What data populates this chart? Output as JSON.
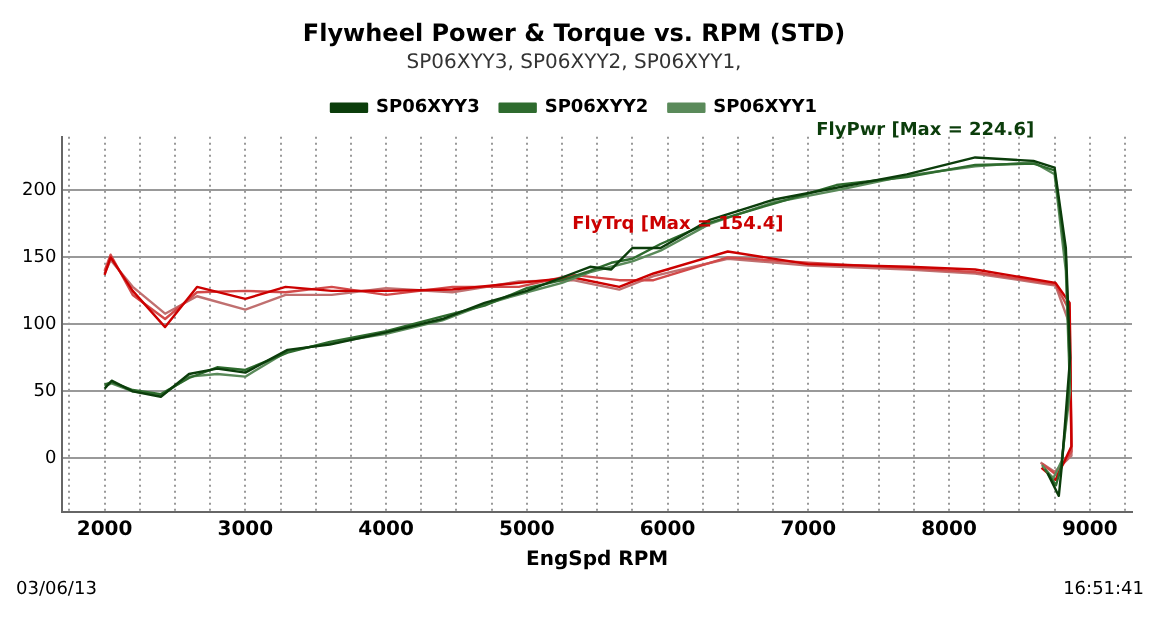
{
  "chart_data": {
    "type": "line",
    "title": "Flywheel Power & Torque vs. RPM (STD)",
    "subtitle": "SP06XYY3, SP06XYY2, SP06XYY1,",
    "xlabel": "EngSpd RPM",
    "xlim": [
      1700,
      9300
    ],
    "xticks": [
      {
        "value": 1750,
        "label": null
      },
      2000,
      {
        "value": 2250,
        "label": null
      },
      {
        "value": 2500,
        "label": null
      },
      {
        "value": 2750,
        "label": null
      },
      3000,
      {
        "value": 3250,
        "label": null
      },
      {
        "value": 3500,
        "label": null
      },
      {
        "value": 3750,
        "label": null
      },
      4000,
      {
        "value": 4250,
        "label": null
      },
      {
        "value": 4500,
        "label": null
      },
      {
        "value": 4750,
        "label": null
      },
      5000,
      {
        "value": 5250,
        "label": null
      },
      {
        "value": 5500,
        "label": null
      },
      {
        "value": 5750,
        "label": null
      },
      6000,
      {
        "value": 6250,
        "label": null
      },
      {
        "value": 6500,
        "label": null
      },
      {
        "value": 6750,
        "label": null
      },
      7000,
      {
        "value": 7250,
        "label": null
      },
      {
        "value": 7500,
        "label": null
      },
      {
        "value": 7750,
        "label": null
      },
      8000,
      {
        "value": 8250,
        "label": null
      },
      {
        "value": 8500,
        "label": null
      },
      {
        "value": 8750,
        "label": null
      },
      9000,
      {
        "value": 9250,
        "label": null
      }
    ],
    "ylim": [
      -40,
      240
    ],
    "yticks": [
      0,
      50,
      100,
      150,
      200
    ],
    "grid": true,
    "legend": "top",
    "marker": "none",
    "line_style": "solid",
    "series": [
      {
        "name": "SP06XYY3",
        "color": "#0b3d0b",
        "x": [
          2000,
          2050,
          2200,
          2400,
          2600,
          2800,
          3000,
          3300,
          3600,
          4000,
          4400,
          4700,
          5000,
          5250,
          5450,
          5600,
          5750,
          5950,
          6300,
          6750,
          7200,
          7700,
          8186,
          8600,
          8750,
          8830,
          8860,
          8800,
          8780,
          8700
        ],
        "values": [
          52,
          58,
          50,
          46,
          63,
          67,
          64,
          81,
          85,
          94,
          104,
          116,
          125,
          135,
          143,
          141,
          157,
          157,
          178,
          193,
          202,
          212,
          224.6,
          222,
          217,
          157,
          75,
          -7,
          -28,
          -11
        ]
      },
      {
        "name": "SP06XYY2",
        "color": "#2e6b2e",
        "x": [
          2000,
          2050,
          2200,
          2400,
          2600,
          2800,
          3000,
          3300,
          3600,
          4000,
          4400,
          4700,
          5000,
          5250,
          5450,
          5600,
          5750,
          5950,
          6300,
          6750,
          7200,
          7700,
          8186,
          8600,
          8750,
          8830,
          8860,
          8800,
          8760,
          8680
        ],
        "values": [
          55,
          57,
          51,
          48,
          60,
          68,
          66,
          79,
          87,
          95,
          106,
          114,
          127,
          133,
          140,
          146,
          149,
          160,
          176,
          190,
          204,
          210,
          219,
          220,
          215,
          150,
          60,
          -5,
          -20,
          -8
        ]
      },
      {
        "name": "SP06XYY1",
        "color": "#5a8a5a",
        "x": [
          2000,
          2050,
          2200,
          2400,
          2600,
          2800,
          3000,
          3300,
          3600,
          4000,
          4400,
          4700,
          5000,
          5250,
          5450,
          5600,
          5750,
          5950,
          6300,
          6750,
          7200,
          7700,
          8186,
          8600,
          8750,
          8830,
          8860,
          8800,
          8740,
          8660
        ],
        "values": [
          54,
          56,
          50,
          47,
          61,
          63,
          61,
          80,
          86,
          93,
          103,
          115,
          124,
          131,
          139,
          143,
          147,
          155,
          175,
          191,
          200,
          211,
          218,
          221,
          212,
          140,
          50,
          -2,
          -15,
          -5
        ]
      },
      {
        "color": "#cc0000",
        "x": [
          2000,
          2043,
          2200,
          2430,
          2657,
          3000,
          3286,
          3614,
          4000,
          4471,
          4943,
          5328,
          5657,
          5900,
          6428,
          7000,
          7714,
          8186,
          8757,
          8857,
          8870,
          8757,
          8657
        ],
        "values": [
          137,
          150,
          125,
          98,
          128,
          119,
          128,
          125,
          125,
          126,
          131,
          135,
          128,
          138,
          154.4,
          145,
          143,
          141,
          131,
          116,
          9,
          -16,
          -7
        ]
      },
      {
        "color": "#d24a4a",
        "x": [
          2000,
          2043,
          2200,
          2430,
          2657,
          3000,
          3286,
          3614,
          4000,
          4471,
          4943,
          5328,
          5657,
          5900,
          6428,
          7000,
          7714,
          8186,
          8757,
          8857,
          8870,
          8760,
          8660
        ],
        "values": [
          140,
          152,
          122,
          104,
          124,
          125,
          124,
          128,
          122,
          128,
          128,
          137,
          133,
          133,
          150,
          146,
          142,
          139,
          130,
          110,
          5,
          -12,
          -4
        ]
      },
      {
        "color": "#c07070",
        "x": [
          2000,
          2043,
          2200,
          2430,
          2657,
          3000,
          3286,
          3614,
          4000,
          4471,
          4943,
          5328,
          5657,
          5900,
          6428,
          7000,
          7714,
          8186,
          8757,
          8857,
          8870,
          8750,
          8650
        ],
        "values": [
          138,
          148,
          128,
          108,
          121,
          111,
          122,
          122,
          127,
          124,
          132,
          133,
          126,
          136,
          149,
          144,
          141,
          138,
          129,
          100,
          2,
          -10,
          -3
        ]
      }
    ],
    "annotations": [
      {
        "text": "FlyPwr [Max = 224.6]",
        "x": 8186,
        "y": 224.6
      },
      {
        "text": "FlyTrq [Max = 154.4]",
        "x": 6428,
        "y": 154.4
      },
      "03/06/13",
      "16:51:41"
    ]
  }
}
